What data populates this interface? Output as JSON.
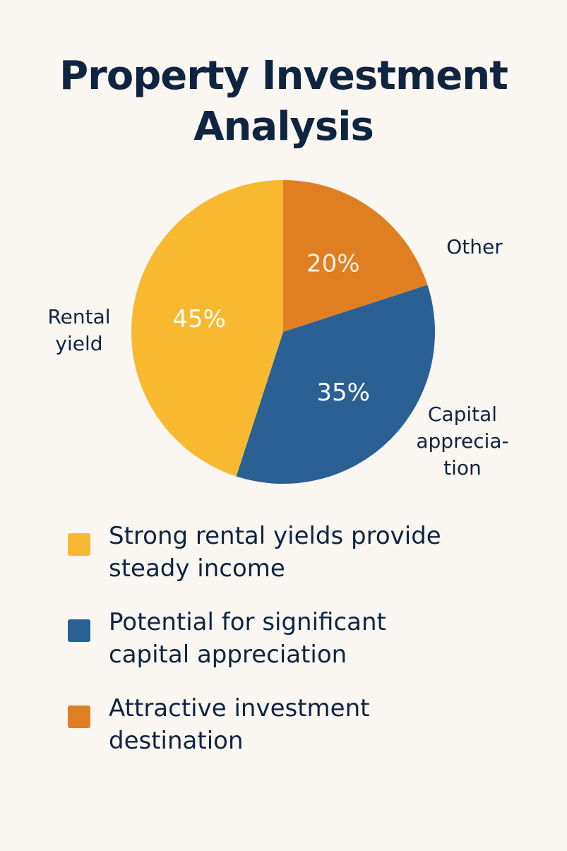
{
  "title_lines": [
    "Property Investment",
    "Analysis"
  ],
  "chart_data": {
    "type": "pie",
    "title": "Property Investment Analysis",
    "slices": [
      {
        "label_lines": [
          "Other"
        ],
        "value": 20,
        "value_label": "20%",
        "color": "#e07f22",
        "text_color": "#fdf1e6"
      },
      {
        "label_lines": [
          "Capital",
          "apprecia-",
          "tion"
        ],
        "value": 35,
        "value_label": "35%",
        "color": "#2a6093",
        "text_color": "#ffffff"
      },
      {
        "label_lines": [
          "Rental",
          "yield"
        ],
        "value": 45,
        "value_label": "45%",
        "color": "#f8b930",
        "text_color": "#ffffff"
      }
    ]
  },
  "legend": [
    {
      "color": "#f8b930",
      "lines": [
        "Strong rental yields provide",
        "steady income"
      ]
    },
    {
      "color": "#2a6093",
      "lines": [
        "Potential for significant",
        "capital appreciation"
      ]
    },
    {
      "color": "#e07f22",
      "lines": [
        "Attractive investment",
        "destination"
      ]
    }
  ]
}
